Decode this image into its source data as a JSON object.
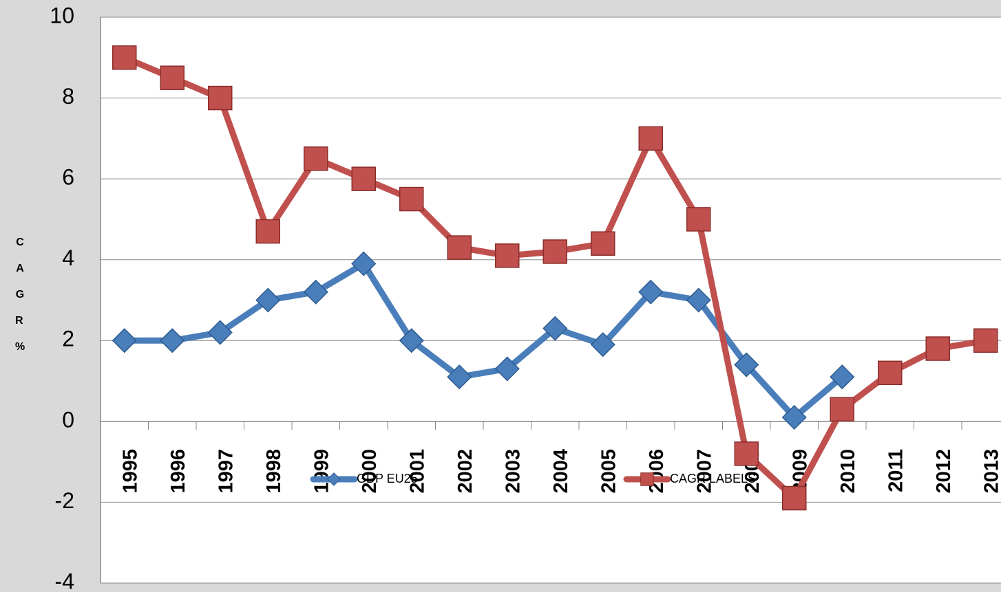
{
  "chart_data": {
    "type": "line",
    "y_label": "CAGR %",
    "categories": [
      "1995",
      "1996",
      "1997",
      "1998",
      "1999",
      "2000",
      "2001",
      "2002",
      "2003",
      "2004",
      "2005",
      "2006",
      "2007",
      "2008",
      "2009",
      "2010",
      "2011",
      "2012",
      "2013"
    ],
    "series": [
      {
        "name": "GDP EU25",
        "color": "#4a7ebb",
        "marker": "diamond",
        "values": [
          2,
          2,
          2.2,
          3,
          3.2,
          3.9,
          2,
          1.1,
          1.3,
          2.3,
          1.9,
          3.2,
          3,
          1.4,
          0.1,
          1.1,
          null,
          null,
          null
        ]
      },
      {
        "name": "CAGR LABELS",
        "color": "#c0504d",
        "marker": "square",
        "values": [
          9,
          8.5,
          8,
          4.7,
          6.5,
          6,
          5.5,
          4.3,
          4.1,
          4.2,
          4.4,
          7,
          5,
          -0.8,
          -1.9,
          0.3,
          1.2,
          1.8,
          2
        ]
      }
    ],
    "ylim": [
      -4,
      10
    ],
    "yticks": [
      -4,
      -2,
      0,
      2,
      4,
      6,
      8,
      10
    ],
    "grid": true
  }
}
